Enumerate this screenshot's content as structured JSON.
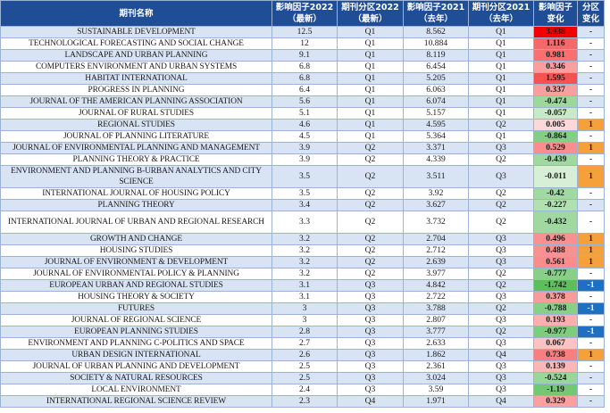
{
  "headers": {
    "name": "期刊名称",
    "if2022": [
      "影响因子2022",
      "（最新）"
    ],
    "q2022": [
      "期刊分区2022",
      "（最新）"
    ],
    "if2021": [
      "影响因子2021",
      "（去年）"
    ],
    "q2021": [
      "期刊分区2021",
      "（去年）"
    ],
    "delta": [
      "影响因子",
      "变化"
    ],
    "qchange": [
      "分区",
      "变化"
    ]
  },
  "rows": [
    {
      "name": "SUSTAINABLE DEVELOPMENT",
      "if2022": "12.5",
      "q2022": "Q1",
      "if2021": "8.562",
      "q2021": "Q1",
      "delta": "3.938",
      "change": "-"
    },
    {
      "name": "TECHNOLOGICAL FORECASTING AND SOCIAL CHANGE",
      "if2022": "12",
      "q2022": "Q1",
      "if2021": "10.884",
      "q2021": "Q1",
      "delta": "1.116",
      "change": "-"
    },
    {
      "name": "LANDSCAPE AND URBAN PLANNING",
      "if2022": "9.1",
      "q2022": "Q1",
      "if2021": "8.119",
      "q2021": "Q1",
      "delta": "0.981",
      "change": "-"
    },
    {
      "name": "COMPUTERS ENVIRONMENT AND URBAN SYSTEMS",
      "if2022": "6.8",
      "q2022": "Q1",
      "if2021": "6.454",
      "q2021": "Q1",
      "delta": "0.346",
      "change": "-"
    },
    {
      "name": "HABITAT INTERNATIONAL",
      "if2022": "6.8",
      "q2022": "Q1",
      "if2021": "5.205",
      "q2021": "Q1",
      "delta": "1.595",
      "change": "-"
    },
    {
      "name": "PROGRESS IN PLANNING",
      "if2022": "6.4",
      "q2022": "Q1",
      "if2021": "6.063",
      "q2021": "Q1",
      "delta": "0.337",
      "change": "-"
    },
    {
      "name": "JOURNAL OF THE AMERICAN PLANNING ASSOCIATION",
      "if2022": "5.6",
      "q2022": "Q1",
      "if2021": "6.074",
      "q2021": "Q1",
      "delta": "-0.474",
      "change": "-"
    },
    {
      "name": "JOURNAL OF RURAL STUDIES",
      "if2022": "5.1",
      "q2022": "Q1",
      "if2021": "5.157",
      "q2021": "Q1",
      "delta": "-0.057",
      "change": "-"
    },
    {
      "name": "REGIONAL STUDIES",
      "if2022": "4.6",
      "q2022": "Q1",
      "if2021": "4.595",
      "q2021": "Q2",
      "delta": "0.005",
      "change": "1"
    },
    {
      "name": "JOURNAL OF PLANNING LITERATURE",
      "if2022": "4.5",
      "q2022": "Q1",
      "if2021": "5.364",
      "q2021": "Q1",
      "delta": "-0.864",
      "change": "-"
    },
    {
      "name": "JOURNAL OF ENVIRONMENTAL PLANNING AND MANAGEMENT",
      "if2022": "3.9",
      "q2022": "Q2",
      "if2021": "3.371",
      "q2021": "Q3",
      "delta": "0.529",
      "change": "1"
    },
    {
      "name": "PLANNING THEORY & PRACTICE",
      "if2022": "3.9",
      "q2022": "Q2",
      "if2021": "4.339",
      "q2021": "Q2",
      "delta": "-0.439",
      "change": "-"
    },
    {
      "name": "ENVIRONMENT AND PLANNING B-URBAN ANALYTICS AND CITY SCIENCE",
      "if2022": "3.5",
      "q2022": "Q2",
      "if2021": "3.511",
      "q2021": "Q3",
      "delta": "-0.011",
      "change": "1",
      "tall": true
    },
    {
      "name": "INTERNATIONAL JOURNAL OF HOUSING POLICY",
      "if2022": "3.5",
      "q2022": "Q2",
      "if2021": "3.92",
      "q2021": "Q2",
      "delta": "-0.42",
      "change": "-"
    },
    {
      "name": "PLANNING THEORY",
      "if2022": "3.4",
      "q2022": "Q2",
      "if2021": "3.627",
      "q2021": "Q2",
      "delta": "-0.227",
      "change": "-"
    },
    {
      "name": "INTERNATIONAL JOURNAL OF URBAN AND REGIONAL RESEARCH",
      "if2022": "3.3",
      "q2022": "Q2",
      "if2021": "3.732",
      "q2021": "Q2",
      "delta": "-0.432",
      "change": "-",
      "tall": true
    },
    {
      "name": "GROWTH AND CHANGE",
      "if2022": "3.2",
      "q2022": "Q2",
      "if2021": "2.704",
      "q2021": "Q3",
      "delta": "0.496",
      "change": "1"
    },
    {
      "name": "HOUSING STUDIES",
      "if2022": "3.2",
      "q2022": "Q2",
      "if2021": "2.712",
      "q2021": "Q3",
      "delta": "0.488",
      "change": "1"
    },
    {
      "name": "JOURNAL OF ENVIRONMENT & DEVELOPMENT",
      "if2022": "3.2",
      "q2022": "Q2",
      "if2021": "2.639",
      "q2021": "Q3",
      "delta": "0.561",
      "change": "1"
    },
    {
      "name": "JOURNAL OF ENVIRONMENTAL POLICY & PLANNING",
      "if2022": "3.2",
      "q2022": "Q2",
      "if2021": "3.977",
      "q2021": "Q2",
      "delta": "-0.777",
      "change": "-"
    },
    {
      "name": "EUROPEAN URBAN AND REGIONAL STUDIES",
      "if2022": "3.1",
      "q2022": "Q3",
      "if2021": "4.842",
      "q2021": "Q2",
      "delta": "-1.742",
      "change": "-1"
    },
    {
      "name": "HOUSING THEORY & SOCIETY",
      "if2022": "3.1",
      "q2022": "Q3",
      "if2021": "2.722",
      "q2021": "Q3",
      "delta": "0.378",
      "change": "-"
    },
    {
      "name": "FUTURES",
      "if2022": "3",
      "q2022": "Q3",
      "if2021": "3.788",
      "q2021": "Q2",
      "delta": "-0.788",
      "change": "-1"
    },
    {
      "name": "JOURNAL OF REGIONAL SCIENCE",
      "if2022": "3",
      "q2022": "Q3",
      "if2021": "2.807",
      "q2021": "Q3",
      "delta": "0.193",
      "change": "-"
    },
    {
      "name": "EUROPEAN PLANNING STUDIES",
      "if2022": "2.8",
      "q2022": "Q3",
      "if2021": "3.777",
      "q2021": "Q2",
      "delta": "-0.977",
      "change": "-1"
    },
    {
      "name": "ENVIRONMENT AND PLANNING C-POLITICS AND SPACE",
      "if2022": "2.7",
      "q2022": "Q3",
      "if2021": "2.633",
      "q2021": "Q3",
      "delta": "0.067",
      "change": "-"
    },
    {
      "name": "URBAN DESIGN INTERNATIONAL",
      "if2022": "2.6",
      "q2022": "Q3",
      "if2021": "1.862",
      "q2021": "Q4",
      "delta": "0.738",
      "change": "1"
    },
    {
      "name": "JOURNAL OF URBAN PLANNING AND DEVELOPMENT",
      "if2022": "2.5",
      "q2022": "Q3",
      "if2021": "2.361",
      "q2021": "Q3",
      "delta": "0.139",
      "change": "-"
    },
    {
      "name": "SOCIETY & NATURAL RESOURCES",
      "if2022": "2.5",
      "q2022": "Q3",
      "if2021": "3.024",
      "q2021": "Q3",
      "delta": "-0.524",
      "change": "-"
    },
    {
      "name": "LOCAL ENVIRONMENT",
      "if2022": "2.4",
      "q2022": "Q3",
      "if2021": "3.59",
      "q2021": "Q3",
      "delta": "-1.19",
      "change": "-"
    },
    {
      "name": "INTERNATIONAL REGIONAL SCIENCE REVIEW",
      "if2022": "2.3",
      "q2022": "Q4",
      "if2021": "1.971",
      "q2021": "Q4",
      "delta": "0.329",
      "change": "-"
    }
  ],
  "colors": {
    "header_bg": "#1f4e96",
    "row_stripe": "#d8e3f3",
    "grid": "#9db3d6",
    "delta_max_red": "#f20000",
    "delta_min_green": "#5cbf5c",
    "upgrade_orange": "#f5a03b",
    "downgrade_blue": "#1f70c1"
  }
}
